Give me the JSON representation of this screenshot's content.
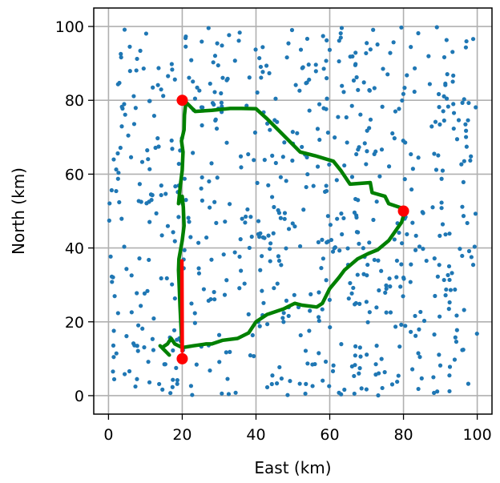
{
  "chart_data": {
    "type": "scatter",
    "xlabel": "East (km)",
    "ylabel": "North (km)",
    "xlim": [
      -4,
      104
    ],
    "ylim": [
      -5,
      105
    ],
    "xticks": [
      0,
      20,
      40,
      60,
      80,
      100
    ],
    "yticks": [
      0,
      20,
      40,
      60,
      80,
      100
    ],
    "grid": true,
    "colors": {
      "points": "#1f77b4",
      "route": "#008000",
      "segment": "#ff0000",
      "nodes": "#ff0000"
    },
    "scatter_points": {
      "count": 700,
      "x_range": [
        0,
        100
      ],
      "y_range": [
        0,
        100
      ],
      "seed": 12345
    },
    "key_nodes": [
      {
        "x": 20,
        "y": 80
      },
      {
        "x": 80,
        "y": 50
      },
      {
        "x": 20,
        "y": 10
      }
    ],
    "route_path": [
      [
        19.9,
        13
      ],
      [
        19.7,
        18
      ],
      [
        19.4,
        24
      ],
      [
        19.2,
        29
      ],
      [
        19.0,
        34
      ],
      [
        19.1,
        37
      ],
      [
        20.0,
        42
      ],
      [
        20.5,
        46
      ],
      [
        20.3,
        51
      ],
      [
        20.0,
        54
      ],
      [
        19.0,
        52
      ],
      [
        19.5,
        57
      ],
      [
        20.0,
        61
      ],
      [
        20.2,
        66
      ],
      [
        19.8,
        69
      ],
      [
        20.5,
        72
      ],
      [
        20.6,
        76
      ],
      [
        21.0,
        79.5
      ],
      [
        23.5,
        77
      ],
      [
        28,
        77.3
      ],
      [
        33,
        77.8
      ],
      [
        36,
        77.8
      ],
      [
        40,
        77.7
      ],
      [
        43,
        75
      ],
      [
        47,
        71
      ],
      [
        52,
        66
      ],
      [
        56,
        65
      ],
      [
        61,
        63.5
      ],
      [
        63,
        61
      ],
      [
        65.5,
        57.3
      ],
      [
        71,
        57.7
      ],
      [
        71.5,
        55
      ],
      [
        75,
        54
      ],
      [
        76,
        52
      ],
      [
        80.5,
        50.5
      ],
      [
        79.5,
        47
      ],
      [
        76,
        42
      ],
      [
        73,
        39.5
      ],
      [
        70.5,
        38.5
      ],
      [
        67.5,
        37
      ],
      [
        64,
        34
      ],
      [
        62.5,
        32
      ],
      [
        60,
        29
      ],
      [
        58,
        25
      ],
      [
        56.5,
        24
      ],
      [
        52.5,
        24.5
      ],
      [
        50.5,
        25
      ],
      [
        49.5,
        24.5
      ],
      [
        47.5,
        23.5
      ],
      [
        43,
        22
      ],
      [
        40,
        20
      ],
      [
        38,
        17
      ],
      [
        35,
        15.5
      ],
      [
        31,
        15
      ],
      [
        28,
        14
      ],
      [
        26.5,
        14
      ],
      [
        23,
        13.5
      ],
      [
        20,
        13
      ],
      [
        18,
        14
      ],
      [
        17,
        15.5
      ],
      [
        16,
        14
      ],
      [
        14.5,
        13
      ],
      [
        15.5,
        12
      ],
      [
        14,
        13.5
      ],
      [
        16.5,
        11
      ]
    ],
    "red_segment": [
      [
        19.9,
        36.5
      ],
      [
        20.0,
        12
      ]
    ]
  }
}
